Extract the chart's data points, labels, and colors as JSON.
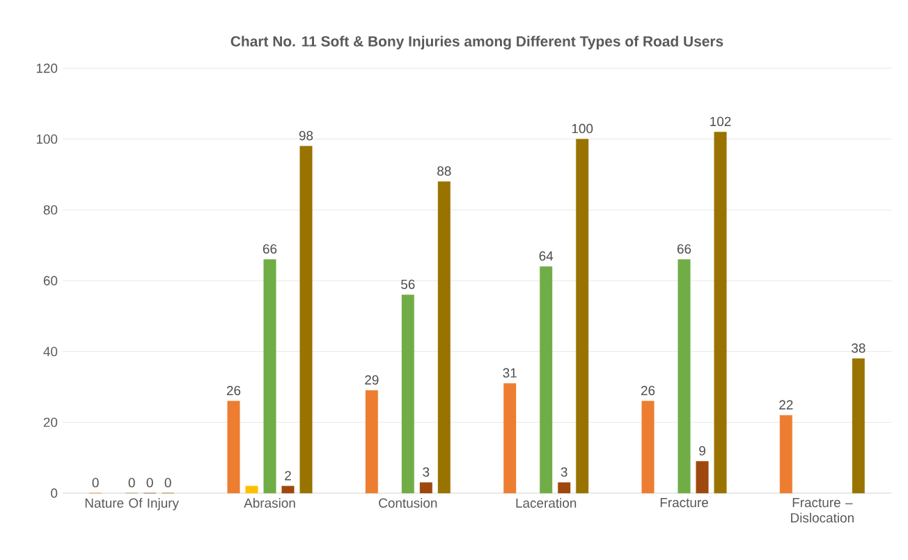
{
  "chart_data": {
    "type": "bar",
    "title": "Chart No. 11 Soft & Bony Injuries among Different Types of Road Users",
    "categories": [
      "Nature Of Injury",
      "Abrasion",
      "Contusion",
      "Laceration",
      "Fracture",
      "Fracture – Dislocation"
    ],
    "series": [
      {
        "color": "#ed7d31",
        "values": [
          0,
          26,
          29,
          31,
          26,
          22
        ],
        "value_labels": [
          "0",
          "26",
          "29",
          "31",
          "26",
          "22"
        ]
      },
      {
        "color": "#ffc000",
        "values": [
          null,
          2,
          null,
          null,
          null,
          null
        ],
        "value_labels": [
          null,
          null,
          null,
          null,
          null,
          null
        ]
      },
      {
        "color": "#70ad47",
        "values": [
          0,
          66,
          56,
          64,
          66,
          null
        ],
        "value_labels": [
          "0",
          "66",
          "56",
          "64",
          "66",
          null
        ]
      },
      {
        "color": "#9e480e",
        "values": [
          0,
          2,
          3,
          3,
          9,
          null
        ],
        "value_labels": [
          "0",
          "2",
          "3",
          "3",
          "9",
          null
        ]
      },
      {
        "color": "#997300",
        "values": [
          0,
          98,
          88,
          100,
          102,
          38
        ],
        "value_labels": [
          "0",
          "98",
          "88",
          "100",
          "102",
          "38"
        ]
      }
    ],
    "ylim": [
      0,
      120
    ],
    "yticks": [
      0,
      20,
      40,
      60,
      80,
      100,
      120
    ],
    "grid": "y"
  }
}
